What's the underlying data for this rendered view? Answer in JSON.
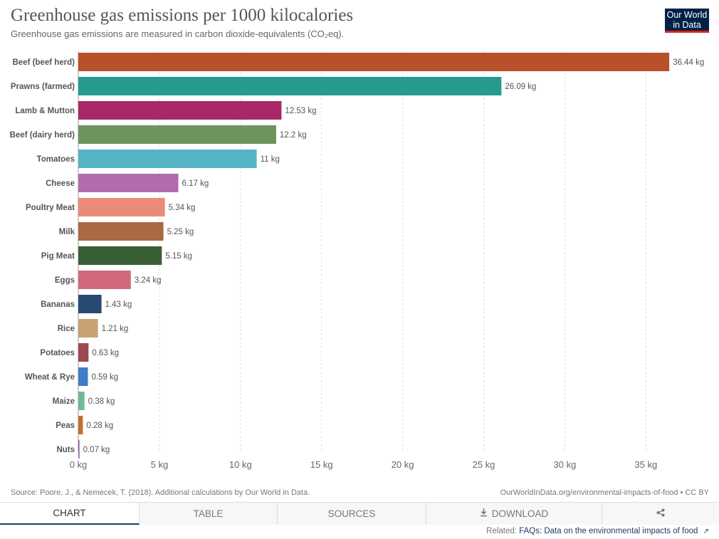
{
  "header": {
    "title": "Greenhouse gas emissions per 1000 kilocalories",
    "subtitle": "Greenhouse gas emissions are measured in carbon dioxide-equivalents (CO₂eq).",
    "logo_line1": "Our World",
    "logo_line2": "in Data"
  },
  "chart_data": {
    "type": "bar",
    "orientation": "horizontal",
    "title": "Greenhouse gas emissions per 1000 kilocalories",
    "xlabel": "",
    "ylabel": "",
    "unit": "kg",
    "xlim": [
      0,
      38
    ],
    "xticks": [
      0,
      5,
      10,
      15,
      20,
      25,
      30,
      35
    ],
    "xtick_labels": [
      "0 kg",
      "5 kg",
      "10 kg",
      "15 kg",
      "20 kg",
      "25 kg",
      "30 kg",
      "35 kg"
    ],
    "grid": true,
    "categories": [
      "Beef (beef herd)",
      "Prawns (farmed)",
      "Lamb & Mutton",
      "Beef (dairy herd)",
      "Tomatoes",
      "Cheese",
      "Poultry Meat",
      "Milk",
      "Pig Meat",
      "Eggs",
      "Bananas",
      "Rice",
      "Potatoes",
      "Wheat & Rye",
      "Maize",
      "Peas",
      "Nuts"
    ],
    "values": [
      36.44,
      26.09,
      12.53,
      12.2,
      11,
      6.17,
      5.34,
      5.25,
      5.15,
      3.24,
      1.43,
      1.21,
      0.63,
      0.59,
      0.38,
      0.28,
      0.07
    ],
    "value_labels": [
      "36.44 kg",
      "26.09 kg",
      "12.53 kg",
      "12.2 kg",
      "11 kg",
      "6.17 kg",
      "5.34 kg",
      "5.25 kg",
      "5.15 kg",
      "3.24 kg",
      "1.43 kg",
      "1.21 kg",
      "0.63 kg",
      "0.59 kg",
      "0.38 kg",
      "0.28 kg",
      "0.07 kg"
    ],
    "colors": [
      "#b9502c",
      "#259a8f",
      "#a92868",
      "#6e945e",
      "#55b4c5",
      "#b06caf",
      "#ea8b79",
      "#a86944",
      "#3a5e34",
      "#d1697b",
      "#2a4a72",
      "#c9a274",
      "#9b4a50",
      "#3f7cc9",
      "#6fb996",
      "#c46d31",
      "#8a5c9a"
    ]
  },
  "footer": {
    "source": "Source: Poore, J., & Nemecek, T. (2018). Additional calculations by Our World in Data.",
    "license": "OurWorldInData.org/environmental-impacts-of-food • CC BY"
  },
  "tabs": {
    "chart": "CHART",
    "table": "TABLE",
    "sources": "SOURCES",
    "download": "DOWNLOAD"
  },
  "related": {
    "prefix": "Related:",
    "link": "FAQs: Data on the environmental impacts of food"
  }
}
